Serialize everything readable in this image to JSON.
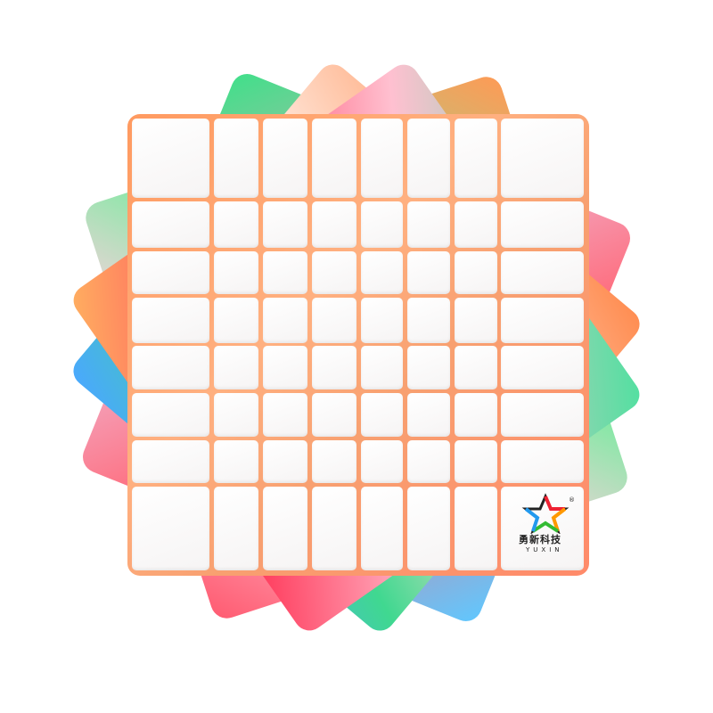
{
  "product": {
    "grid_size": 8,
    "sticker_color": "#ffffff",
    "body_color": "#ff9a60",
    "logo": {
      "name_cn": "勇新科技",
      "name_en": "YUXIN",
      "mark": "®"
    }
  }
}
